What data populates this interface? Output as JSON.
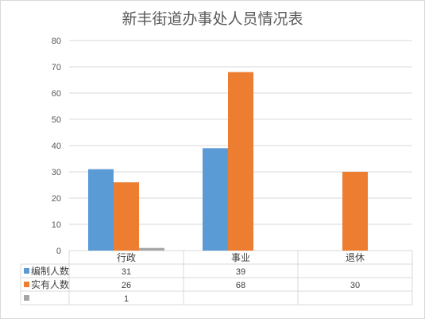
{
  "chart_data": {
    "type": "bar",
    "title": "新丰街道办事处人员情况表",
    "categories": [
      "行政",
      "事业",
      "退休"
    ],
    "series": [
      {
        "name": "编制人数",
        "color": "#5b9bd5",
        "values": [
          31,
          39,
          null
        ]
      },
      {
        "name": "实有人数",
        "color": "#ed7d31",
        "values": [
          26,
          68,
          30
        ]
      },
      {
        "name": "",
        "color": "#a5a5a5",
        "values": [
          1,
          null,
          null
        ]
      }
    ],
    "ylim": [
      0,
      80
    ],
    "yticks": [
      0,
      10,
      20,
      30,
      40,
      50,
      60,
      70,
      80
    ],
    "grid": true,
    "legend": "data-table"
  }
}
